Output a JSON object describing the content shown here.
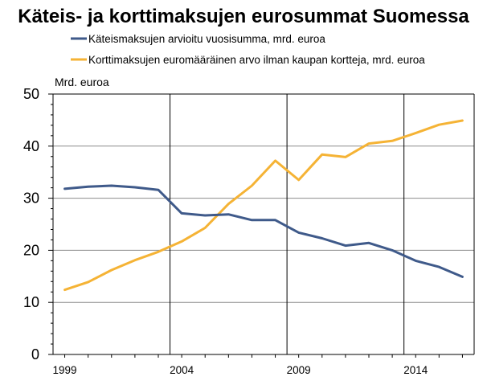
{
  "chart_data": {
    "type": "line",
    "title": "Käteis- ja korttimaksujen eurosummat Suomessa",
    "ylabel": "Mrd. euroa",
    "xlabel": "",
    "ylim": [
      0,
      50
    ],
    "xlim": [
      1998.5,
      2016.5
    ],
    "yticks": [
      "0",
      "10",
      "20",
      "30",
      "40",
      "50"
    ],
    "xticks": [
      "1999",
      "2004",
      "2009",
      "2014"
    ],
    "vertical_lines_at": [
      2003.5,
      2008.5,
      2013.5
    ],
    "grid": true,
    "legend_position": "top",
    "x": [
      1999,
      2000,
      2001,
      2002,
      2003,
      2004,
      2005,
      2006,
      2007,
      2008,
      2009,
      2010,
      2011,
      2012,
      2013,
      2014,
      2015,
      2016
    ],
    "series": [
      {
        "name": "Käteismaksujen arvioitu vuosisumma, mrd. euroa",
        "color": "#3f5a8a",
        "values": [
          31.8,
          32.2,
          32.4,
          32.1,
          31.6,
          27.1,
          26.7,
          26.9,
          25.8,
          25.8,
          23.4,
          22.3,
          20.9,
          21.4,
          20.0,
          18.0,
          16.8,
          14.9
        ]
      },
      {
        "name": "Korttimaksujen euromääräinen arvo ilman kaupan kortteja, mrd. euroa",
        "color": "#f5b335",
        "values": [
          12.4,
          13.9,
          16.2,
          18.1,
          19.7,
          21.7,
          24.3,
          28.9,
          32.4,
          37.2,
          33.5,
          38.4,
          37.9,
          40.5,
          41.0,
          42.5,
          44.1,
          44.9
        ]
      }
    ]
  }
}
